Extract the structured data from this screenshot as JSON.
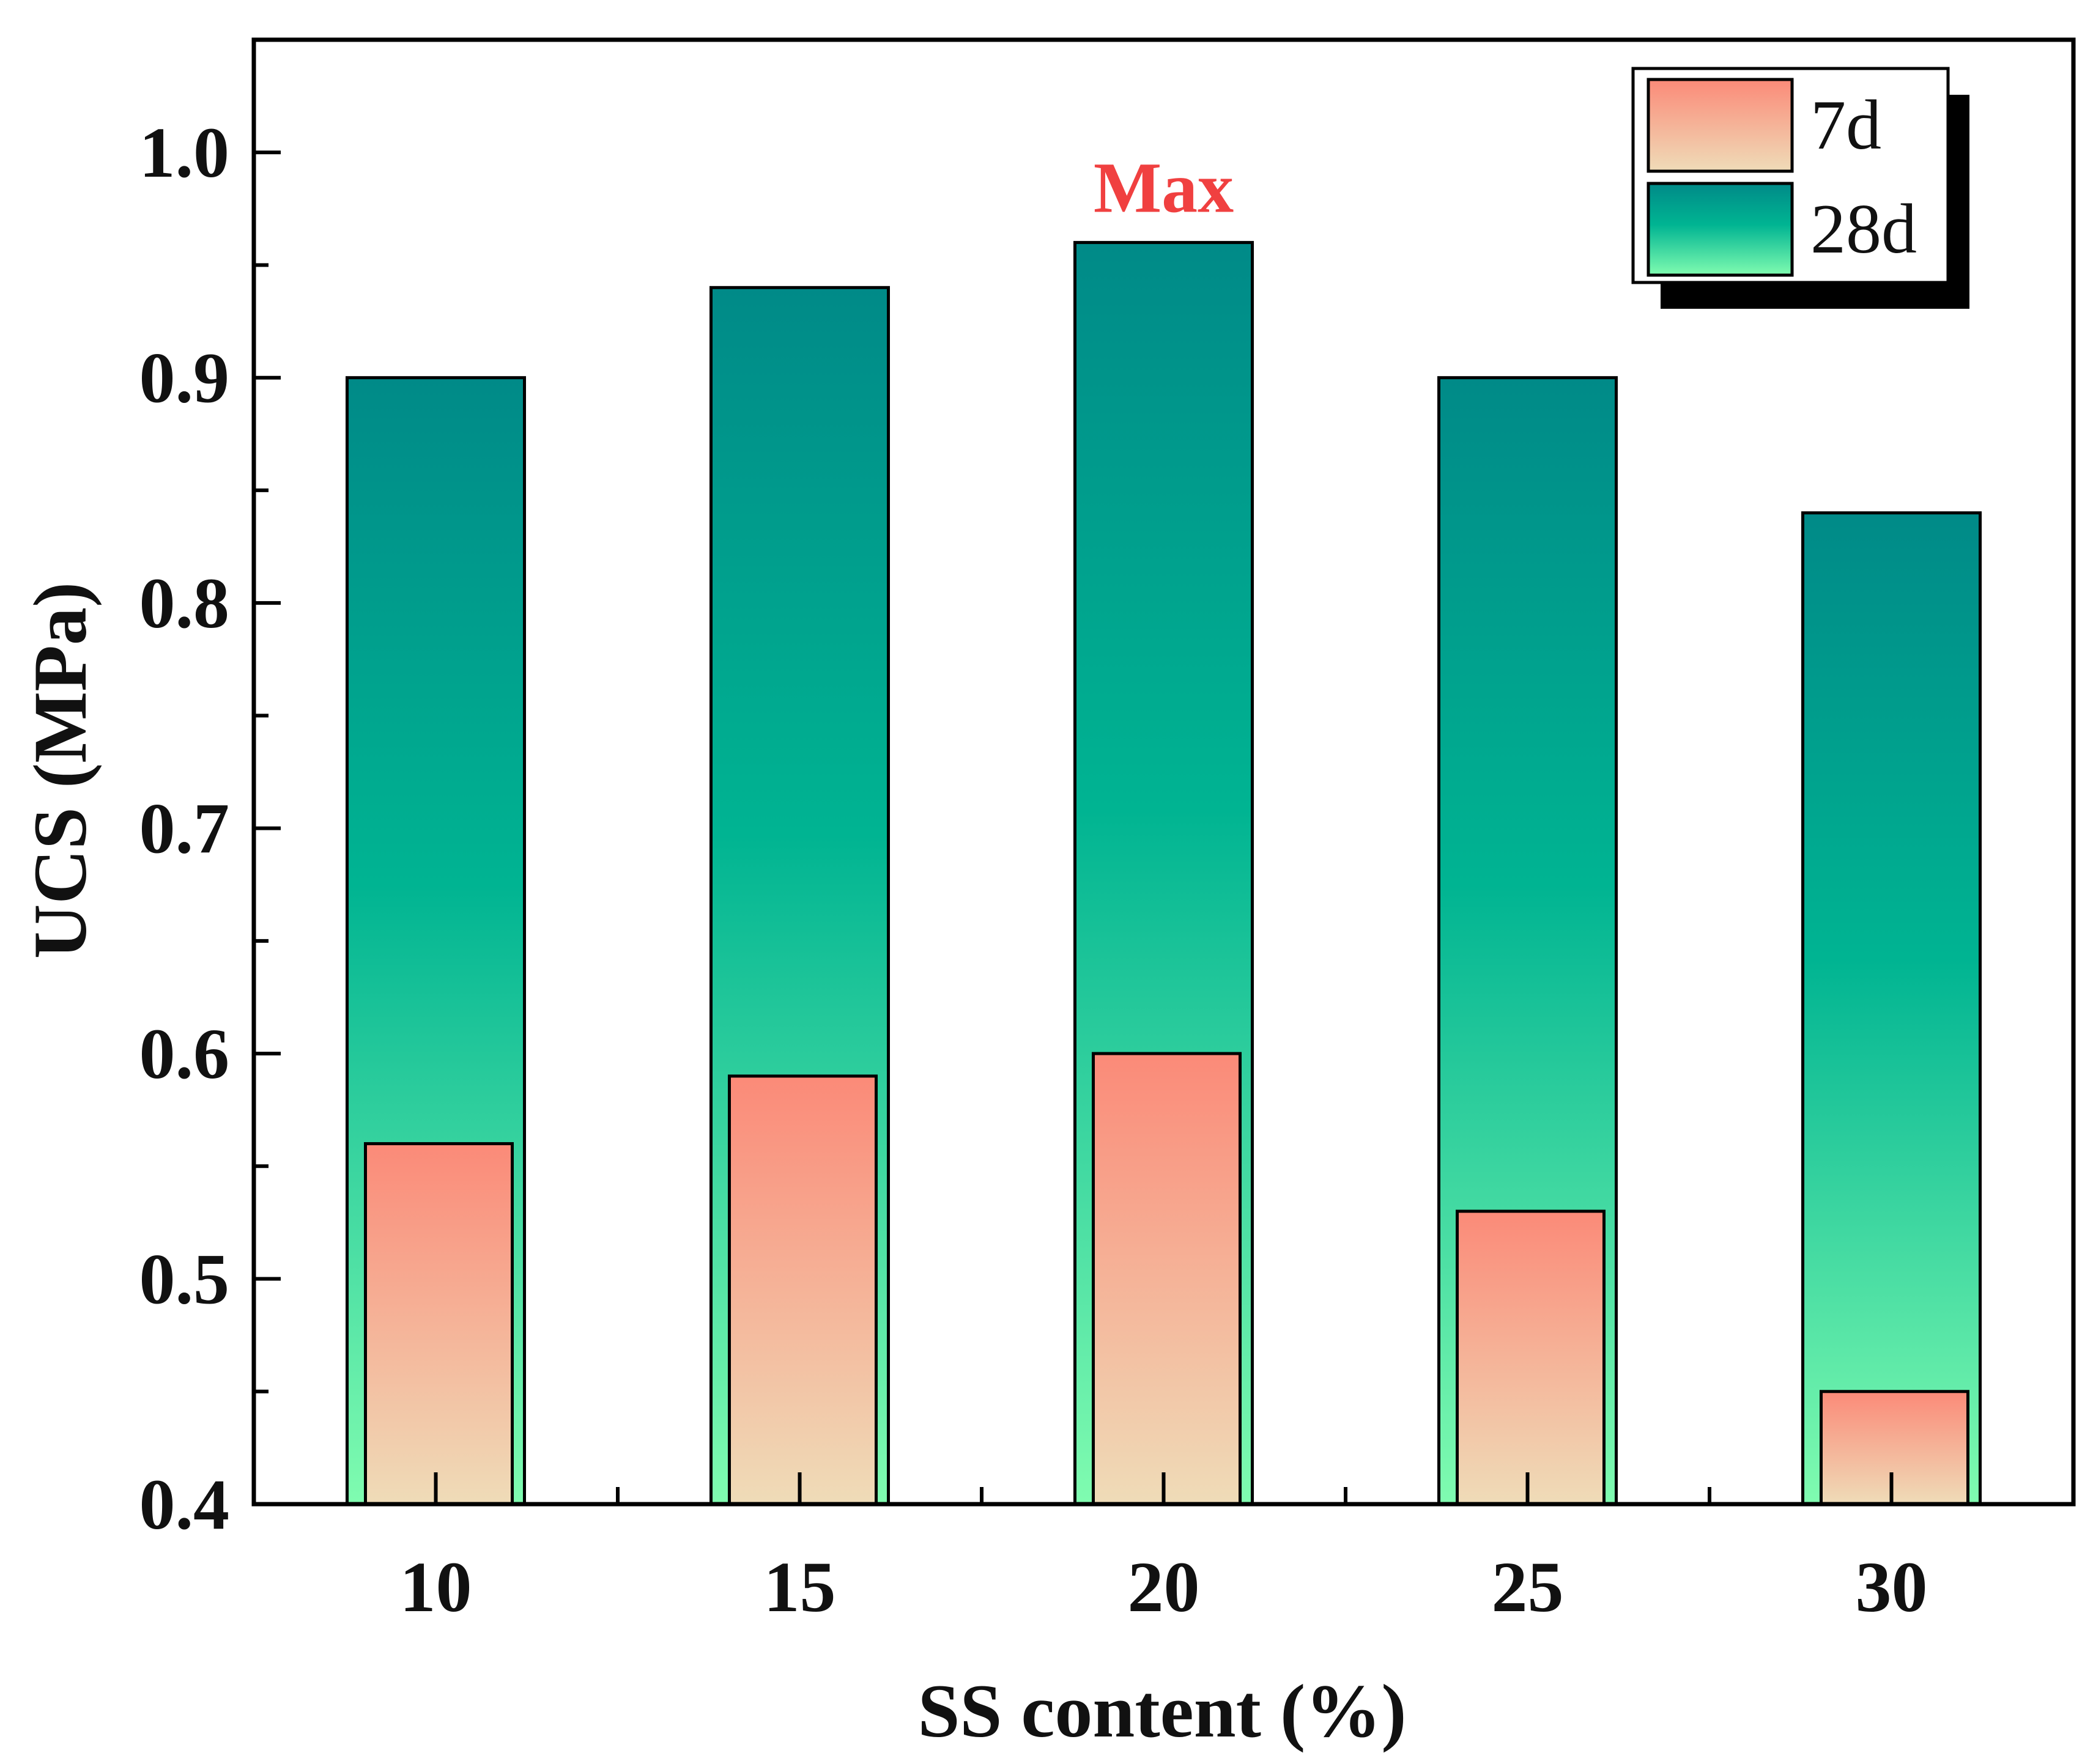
{
  "chart_data": {
    "type": "bar",
    "categories": [
      "10",
      "15",
      "20",
      "25",
      "30"
    ],
    "series": [
      {
        "name": "7d",
        "values": [
          0.56,
          0.59,
          0.6,
          0.53,
          0.45
        ]
      },
      {
        "name": "28d",
        "values": [
          0.9,
          0.94,
          0.96,
          0.9,
          0.84
        ]
      }
    ],
    "xlabel": "SS content (%)",
    "ylabel": "UCS (MPa)",
    "ylim": [
      0.4,
      1.05
    ],
    "yticks": [
      "0.4",
      "0.5",
      "0.6",
      "0.7",
      "0.8",
      "0.9",
      "1.0"
    ],
    "ytick_values": [
      0.4,
      0.5,
      0.6,
      0.7,
      0.8,
      0.9,
      1.0
    ],
    "legend_position": "top-right",
    "annotation": {
      "text": "Max",
      "category": "20",
      "value": 0.96,
      "color": "#f04040"
    },
    "colors": {
      "s7_top": "#fb8a78",
      "s7_bottom": "#efdcb8",
      "s28_top": "#008a88",
      "s28_mid": "#00b492",
      "s28_bottom": "#80fcb0"
    }
  }
}
